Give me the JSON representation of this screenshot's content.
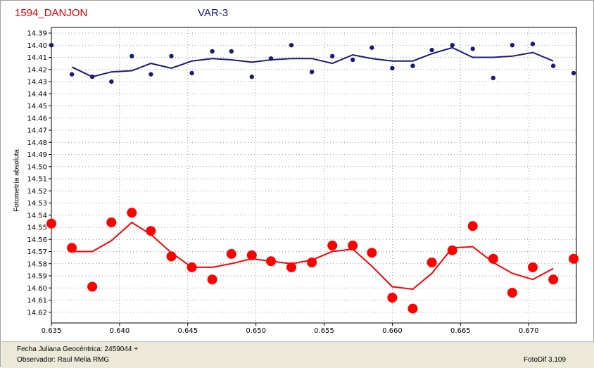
{
  "header": {
    "object_name": "1594_DANJON",
    "series_name": "VAR-3"
  },
  "footer": {
    "julian_label": "Fecha Juliana Geocéntrica: 2459044 +",
    "observer_label": "Observador: Raul Melia RMG",
    "software": "FotoDif 3.109"
  },
  "colors": {
    "var_series": "#1a1a7a",
    "comp_series": "#ff0000",
    "grid": "#808080",
    "object_title": "#e00000"
  },
  "chart_data": {
    "type": "scatter",
    "title": "1594_DANJON",
    "xlabel": "Fecha Juliana Geocéntrica: 2459044 +",
    "ylabel": "Fotometría absoluta",
    "xlim": [
      0.635,
      0.6735
    ],
    "ylim": [
      14.39,
      14.63
    ],
    "y_inverted": true,
    "grid": true,
    "x_ticks": [
      "0.635",
      "0.640",
      "0.645",
      "0.650",
      "0.655",
      "0.660",
      "0.665",
      "0.670"
    ],
    "y_ticks": [
      "14.39",
      "14.40",
      "14.41",
      "14.42",
      "14.43",
      "14.44",
      "14.45",
      "14.46",
      "14.47",
      "14.48",
      "14.49",
      "14.50",
      "14.51",
      "14.52",
      "14.53",
      "14.54",
      "14.55",
      "14.56",
      "14.57",
      "14.58",
      "14.59",
      "14.60",
      "14.61",
      "14.62"
    ],
    "series": [
      {
        "name": "VAR-3",
        "points": [
          [
            0.635,
            14.4
          ],
          [
            0.6365,
            14.424
          ],
          [
            0.638,
            14.426
          ],
          [
            0.6394,
            14.43
          ],
          [
            0.6409,
            14.409
          ],
          [
            0.6423,
            14.424
          ],
          [
            0.6438,
            14.409
          ],
          [
            0.6453,
            14.423
          ],
          [
            0.6468,
            14.405
          ],
          [
            0.6482,
            14.405
          ],
          [
            0.6497,
            14.426
          ],
          [
            0.6511,
            14.411
          ],
          [
            0.6526,
            14.4
          ],
          [
            0.6541,
            14.422
          ],
          [
            0.6556,
            14.409
          ],
          [
            0.6571,
            14.412
          ],
          [
            0.6585,
            14.402
          ],
          [
            0.66,
            14.419
          ],
          [
            0.6615,
            14.417
          ],
          [
            0.6629,
            14.404
          ],
          [
            0.6644,
            14.4
          ],
          [
            0.6659,
            14.403
          ],
          [
            0.6674,
            14.427
          ],
          [
            0.6688,
            14.4
          ],
          [
            0.6703,
            14.399
          ],
          [
            0.6718,
            14.417
          ],
          [
            0.6733,
            14.423
          ]
        ],
        "trend": [
          [
            0.6365,
            14.418
          ],
          [
            0.638,
            14.426
          ],
          [
            0.6394,
            14.422
          ],
          [
            0.6409,
            14.421
          ],
          [
            0.6423,
            14.415
          ],
          [
            0.6438,
            14.419
          ],
          [
            0.6453,
            14.413
          ],
          [
            0.6468,
            14.411
          ],
          [
            0.6482,
            14.412
          ],
          [
            0.6497,
            14.414
          ],
          [
            0.6511,
            14.412
          ],
          [
            0.6526,
            14.411
          ],
          [
            0.6541,
            14.411
          ],
          [
            0.6556,
            14.415
          ],
          [
            0.6571,
            14.408
          ],
          [
            0.6585,
            14.411
          ],
          [
            0.66,
            14.413
          ],
          [
            0.6615,
            14.413
          ],
          [
            0.6629,
            14.407
          ],
          [
            0.6644,
            14.402
          ],
          [
            0.6659,
            14.41
          ],
          [
            0.6674,
            14.41
          ],
          [
            0.6688,
            14.409
          ],
          [
            0.6703,
            14.406
          ],
          [
            0.6718,
            14.413
          ]
        ]
      },
      {
        "name": "",
        "points": [
          [
            0.635,
            14.547
          ],
          [
            0.6365,
            14.567
          ],
          [
            0.638,
            14.599
          ],
          [
            0.6394,
            14.546
          ],
          [
            0.6409,
            14.538
          ],
          [
            0.6423,
            14.553
          ],
          [
            0.6438,
            14.574
          ],
          [
            0.6453,
            14.583
          ],
          [
            0.6468,
            14.593
          ],
          [
            0.6482,
            14.572
          ],
          [
            0.6497,
            14.573
          ],
          [
            0.6511,
            14.578
          ],
          [
            0.6526,
            14.583
          ],
          [
            0.6541,
            14.579
          ],
          [
            0.6556,
            14.565
          ],
          [
            0.6571,
            14.565
          ],
          [
            0.6585,
            14.571
          ],
          [
            0.66,
            14.608
          ],
          [
            0.6615,
            14.617
          ],
          [
            0.6629,
            14.579
          ],
          [
            0.6644,
            14.569
          ],
          [
            0.6659,
            14.549
          ],
          [
            0.6674,
            14.576
          ],
          [
            0.6688,
            14.604
          ],
          [
            0.6703,
            14.583
          ],
          [
            0.6718,
            14.593
          ],
          [
            0.6733,
            14.576
          ]
        ],
        "trend": [
          [
            0.6365,
            14.57
          ],
          [
            0.638,
            14.57
          ],
          [
            0.6394,
            14.561
          ],
          [
            0.6409,
            14.546
          ],
          [
            0.6423,
            14.556
          ],
          [
            0.6438,
            14.571
          ],
          [
            0.6453,
            14.583
          ],
          [
            0.6468,
            14.583
          ],
          [
            0.6482,
            14.58
          ],
          [
            0.6497,
            14.576
          ],
          [
            0.6511,
            14.578
          ],
          [
            0.6526,
            14.58
          ],
          [
            0.6541,
            14.577
          ],
          [
            0.6556,
            14.57
          ],
          [
            0.6571,
            14.568
          ],
          [
            0.6585,
            14.582
          ],
          [
            0.66,
            14.599
          ],
          [
            0.6615,
            14.601
          ],
          [
            0.6629,
            14.588
          ],
          [
            0.6644,
            14.567
          ],
          [
            0.6659,
            14.566
          ],
          [
            0.6674,
            14.579
          ],
          [
            0.6688,
            14.588
          ],
          [
            0.6703,
            14.593
          ],
          [
            0.6718,
            14.584
          ]
        ]
      }
    ]
  }
}
